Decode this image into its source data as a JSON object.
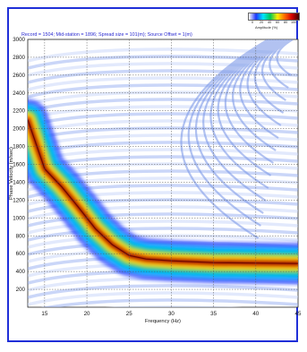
{
  "chart_data": {
    "type": "heatmap",
    "title": "Record = 1504; Mid-station = 1896; Spread size = 101(m); Source Offset = 1(m)",
    "xlabel": "Frequency (Hz)",
    "ylabel": "Phase Velocity (m/sec)",
    "xlim": [
      13,
      45
    ],
    "ylim": [
      0,
      3000
    ],
    "x_ticks": [
      "15",
      "20",
      "25",
      "30",
      "35",
      "40",
      "45"
    ],
    "y_ticks": [
      "200",
      "400",
      "600",
      "800",
      "1000",
      "1200",
      "1400",
      "1600",
      "1800",
      "2000",
      "2200",
      "2400",
      "2600",
      "2800",
      "3000"
    ],
    "grid": true,
    "colorbar": {
      "label": "Amplitude (%)",
      "ticks": [
        "0",
        "20",
        "40",
        "60",
        "80",
        "100"
      ],
      "colors": [
        "#ffffff",
        "#1e34ff",
        "#00e5ff",
        "#00c853",
        "#ffeb00",
        "#ff6a00",
        "#d50000",
        "#3a0000"
      ]
    },
    "dispersion_curve": {
      "name": "",
      "x": [
        13,
        15,
        17,
        19,
        21,
        23,
        25,
        27,
        30,
        35,
        40,
        45
      ],
      "y": [
        2100,
        1550,
        1350,
        1120,
        880,
        700,
        580,
        540,
        520,
        500,
        495,
        490
      ]
    }
  }
}
